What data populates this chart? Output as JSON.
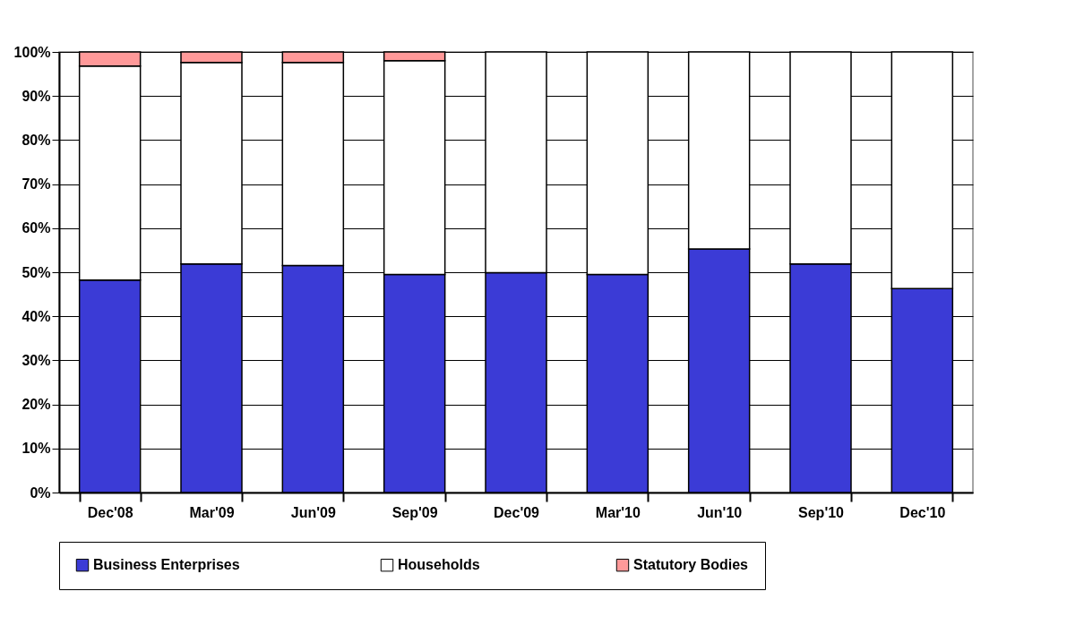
{
  "chart_data": {
    "type": "bar",
    "stacked": true,
    "categories": [
      "Dec'08",
      "Mar'09",
      "Jun'09",
      "Sep'09",
      "Dec'09",
      "Mar'10",
      "Jun'10",
      "Sep'10",
      "Dec'10"
    ],
    "series": [
      {
        "name": "Business  Enterprises",
        "color": "#3b3bd6",
        "values": [
          48.2,
          51.9,
          51.5,
          49.5,
          49.9,
          49.5,
          55.3,
          51.9,
          46.3
        ]
      },
      {
        "name": "Households",
        "color": "#ffffff",
        "values": [
          48.6,
          45.7,
          46.1,
          48.5,
          50.1,
          50.5,
          44.7,
          48.1,
          53.7
        ]
      },
      {
        "name": "Statutory Bodies",
        "color": "#ff9999",
        "values": [
          3.2,
          2.4,
          2.4,
          2.0,
          null,
          null,
          null,
          null,
          null
        ]
      }
    ],
    "ylim": [
      0,
      100
    ],
    "yticks": [
      {
        "value": 0,
        "label": "0%"
      },
      {
        "value": 10,
        "label": "10%"
      },
      {
        "value": 20,
        "label": "20%"
      },
      {
        "value": 30,
        "label": "30%"
      },
      {
        "value": 40,
        "label": "40%"
      },
      {
        "value": 50,
        "label": "50%"
      },
      {
        "value": 60,
        "label": "60%"
      },
      {
        "value": 70,
        "label": "70%"
      },
      {
        "value": 80,
        "label": "80%"
      },
      {
        "value": 90,
        "label": "90%"
      },
      {
        "value": 100,
        "label": "100%"
      }
    ],
    "grid": "y",
    "legend": "bottom"
  }
}
